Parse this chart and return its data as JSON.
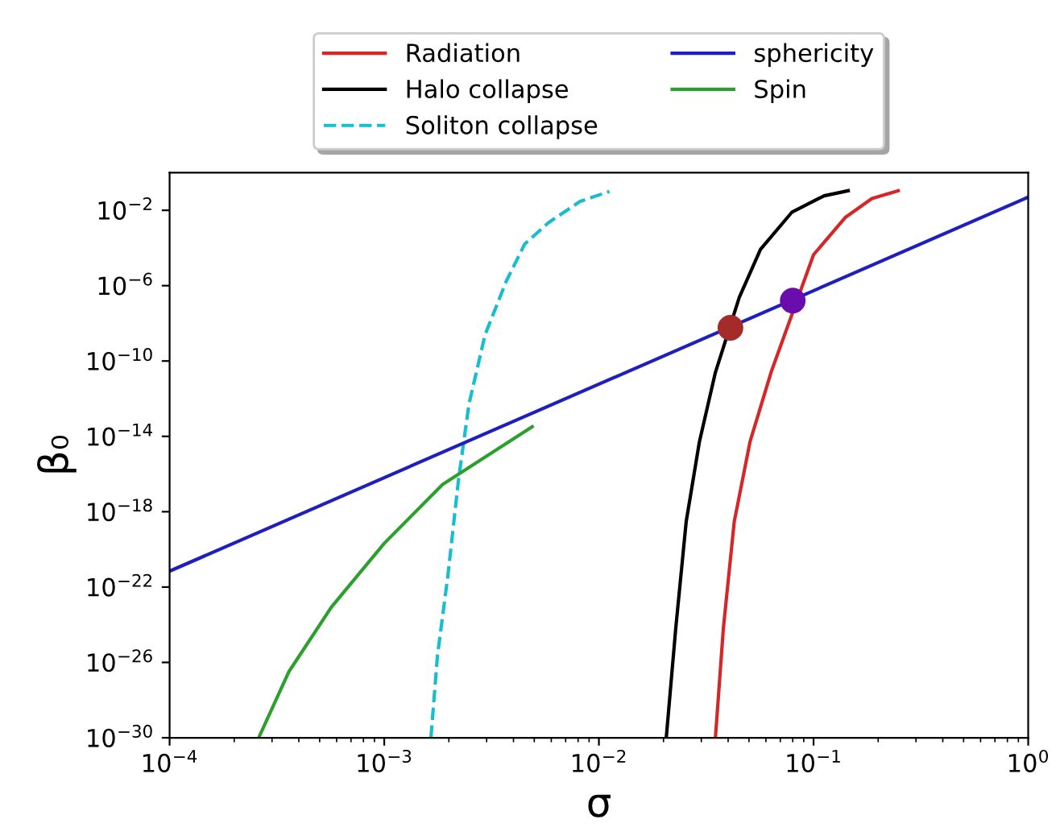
{
  "chart_data": {
    "type": "line",
    "xlabel": "σ",
    "ylabel": "β₀",
    "log": "xy",
    "xlim": [
      0.0001,
      1
    ],
    "ylim": [
      1e-30,
      1
    ],
    "xticks": [
      {
        "value": 0.0001,
        "label": "10$^{−4}$"
      },
      {
        "value": 0.001,
        "label": "10$^{−3}$"
      },
      {
        "value": 0.01,
        "label": "10$^{−2}$"
      },
      {
        "value": 0.1,
        "label": "10$^{−1}$"
      },
      {
        "value": 1,
        "label": "10$^{0}$"
      }
    ],
    "yticks": [
      {
        "value": 1e-30,
        "label": "10$^{−30}$"
      },
      {
        "value": 1e-26,
        "label": "10$^{−26}$"
      },
      {
        "value": 1e-22,
        "label": "10$^{−22}$"
      },
      {
        "value": 1e-18,
        "label": "10$^{−18}$"
      },
      {
        "value": 1e-14,
        "label": "10$^{−14}$"
      },
      {
        "value": 1e-10,
        "label": "10$^{−10}$"
      },
      {
        "value": 1e-06,
        "label": "10$^{−6}$"
      },
      {
        "value": 0.01,
        "label": "10$^{−2}$"
      }
    ],
    "grid": false,
    "legend": "top",
    "series": [
      {
        "name": "Radiation",
        "color": "#d62728",
        "line_style": "solid",
        "x": [
          0.0349,
          0.038,
          0.0427,
          0.0506,
          0.0634,
          0.1,
          0.141,
          0.187,
          0.248
        ],
        "values": [
          1e-30,
          6.3e-25,
          2.9e-19,
          5.2e-15,
          2.5e-11,
          4.4e-05,
          0.0043,
          0.042,
          0.11
        ]
      },
      {
        "name": "Halo collapse",
        "color": "#000000",
        "line_style": "solid",
        "x": [
          0.0206,
          0.0228,
          0.0255,
          0.0294,
          0.0349,
          0.0451,
          0.0566,
          0.0794,
          0.112,
          0.145
        ],
        "values": [
          1e-30,
          6.3e-25,
          2.9e-19,
          5.2e-15,
          2.5e-11,
          2.4e-07,
          8.5e-05,
          0.0081,
          0.059,
          0.11
        ]
      },
      {
        "name": "Soliton collapse",
        "color": "#17becf",
        "line_style": "dashed",
        "x": [
          0.00165,
          0.00177,
          0.00198,
          0.00222,
          0.00248,
          0.00295,
          0.0037,
          0.00451,
          0.00582,
          0.00818,
          0.0112
        ],
        "values": [
          1e-30,
          2.3e-26,
          4.2e-22,
          5.4e-17,
          5e-13,
          2.5e-09,
          1.7e-06,
          0.00016,
          0.0022,
          0.03,
          0.1
        ]
      },
      {
        "name": "sphericity",
        "color": "#1f1fbf",
        "line_style": "solid",
        "x": [
          0.0001,
          1
        ],
        "values": [
          7e-22,
          0.05
        ]
      },
      {
        "name": "Spin",
        "color": "#2ca02c",
        "line_style": "solid",
        "x": [
          0.00026,
          0.00036,
          0.000566,
          0.001,
          0.00187,
          0.00349,
          0.00489
        ],
        "values": [
          1e-30,
          3.3e-27,
          8.3e-24,
          2.1e-20,
          2.8e-17,
          2.7e-15,
          3.2e-14
        ]
      },
      {
        "type": "scatter",
        "marker": "circle",
        "color": "#a52a2a",
        "x": [
          0.041
        ],
        "values": [
          5.8e-09
        ]
      },
      {
        "type": "scatter",
        "marker": "circle",
        "color": "#6a0dad",
        "x": [
          0.08
        ],
        "values": [
          1.6e-07
        ]
      }
    ]
  }
}
